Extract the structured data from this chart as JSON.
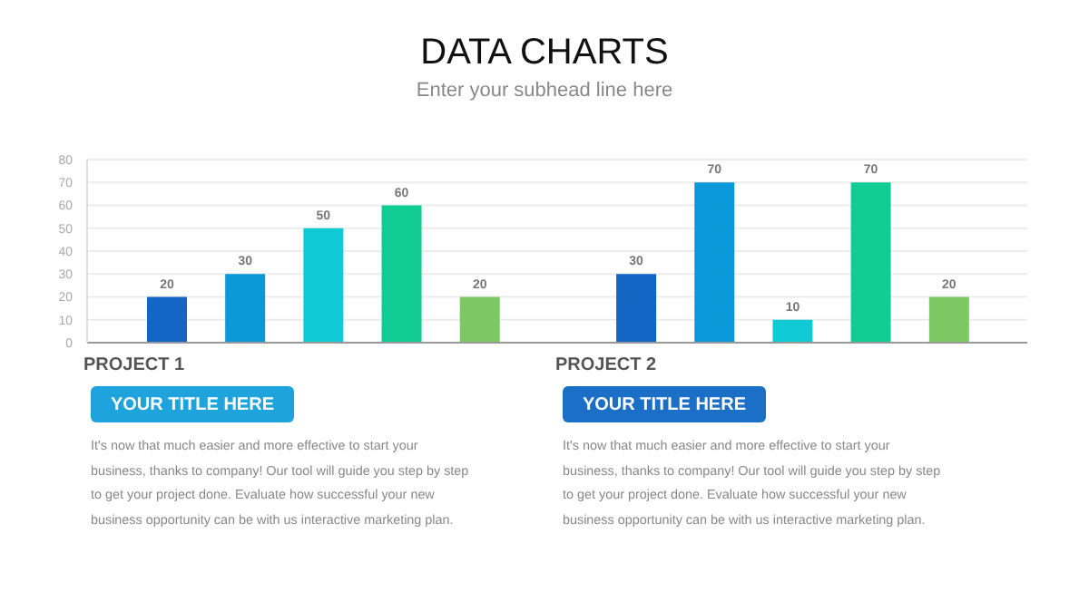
{
  "chart_data": {
    "type": "bar",
    "title": "DATA CHARTS",
    "subtitle": "Enter your subhead line here",
    "categories": [
      null,
      null,
      null,
      null,
      null,
      null,
      null,
      null,
      null,
      null,
      null
    ],
    "values": [
      20,
      30,
      50,
      60,
      20,
      null,
      30,
      70,
      10,
      70,
      20
    ],
    "colors": [
      "#1565c5",
      "#0a98d8",
      "#10cbd6",
      "#12cc96",
      "#7cc863",
      null,
      "#1565c5",
      "#0a98d8",
      "#10cbd6",
      "#12cc96",
      "#7cc863"
    ],
    "ylim": [
      0,
      80
    ],
    "yticks": [
      0,
      10,
      20,
      30,
      40,
      50,
      60,
      70,
      80
    ],
    "grid": "y",
    "data_labels": true,
    "annotations": [
      "PROJECT 1",
      "YOUR TITLE HERE",
      "It's now that much easier and more effective to start your business, thanks to company! Our tool will guide you step by step to get your project done. Evaluate how successful your new business opportunity can be with us interactive marketing plan.",
      "PROJECT 2",
      "YOUR TITLE HERE",
      "It's now that much easier and more effective to start your business, thanks to company! Our tool will guide you step by step to get your project done. Evaluate how successful your new business opportunity can be with us interactive marketing plan."
    ]
  }
}
